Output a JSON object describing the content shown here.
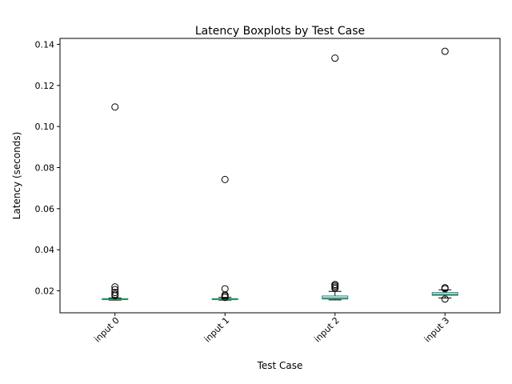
{
  "chart_data": {
    "type": "boxplot",
    "title": "Latency Boxplots by Test Case",
    "xlabel": "Test Case",
    "ylabel": "Latency (seconds)",
    "ylim": [
      0.0093,
      0.1429
    ],
    "yticks": [
      "0.02",
      "0.04",
      "0.06",
      "0.08",
      "0.10",
      "0.12",
      "0.14"
    ],
    "ytick_values": [
      0.02,
      0.04,
      0.06,
      0.08,
      0.1,
      0.12,
      0.14
    ],
    "categories": [
      "input 0",
      "input 1",
      "input 2",
      "input 3"
    ],
    "grid": false,
    "colors": {
      "box": "#1f77b4",
      "median": "#2ca02c",
      "whisker": "#000000",
      "flier": "#000000"
    },
    "series": [
      {
        "category": "input 0",
        "whisker_low": 0.0155,
        "q1": 0.0157,
        "median": 0.0159,
        "q3": 0.0162,
        "whisker_high": 0.0165,
        "fliers": [
          0.1095,
          0.0219,
          0.0206,
          0.0192,
          0.0183,
          0.0176
        ]
      },
      {
        "category": "input 1",
        "whisker_low": 0.0155,
        "q1": 0.0157,
        "median": 0.0159,
        "q3": 0.0162,
        "whisker_high": 0.0168,
        "fliers": [
          0.0742,
          0.021,
          0.018,
          0.0175,
          0.0168
        ]
      },
      {
        "category": "input 2",
        "whisker_low": 0.0156,
        "q1": 0.016,
        "median": 0.0165,
        "q3": 0.0175,
        "whisker_high": 0.0197,
        "fliers": [
          0.1333,
          0.0231,
          0.0225,
          0.0218,
          0.0212
        ]
      },
      {
        "category": "input 3",
        "whisker_low": 0.0165,
        "q1": 0.0178,
        "median": 0.0183,
        "q3": 0.0192,
        "whisker_high": 0.0205,
        "fliers": [
          0.1366,
          0.0215,
          0.021,
          0.016
        ]
      }
    ]
  }
}
